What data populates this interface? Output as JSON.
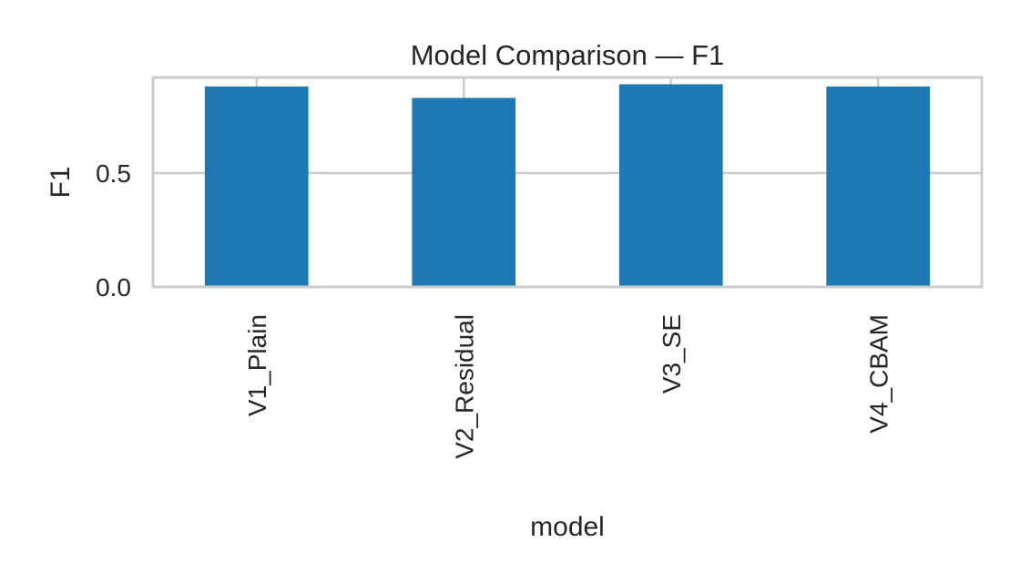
{
  "chart_data": {
    "type": "bar",
    "title": "Model Comparison — F1",
    "xlabel": "model",
    "ylabel": "F1",
    "categories": [
      "V1_Plain",
      "V2_Residual",
      "V3_SE",
      "V4_CBAM"
    ],
    "values": [
      0.88,
      0.83,
      0.89,
      0.88
    ],
    "ylim": [
      0,
      0.92
    ],
    "yticks": [
      {
        "value": 0.0,
        "label": "0.0"
      },
      {
        "value": 0.5,
        "label": "0.5"
      }
    ],
    "grid": true,
    "legend": "none",
    "bar_color": "#1f77b4"
  }
}
